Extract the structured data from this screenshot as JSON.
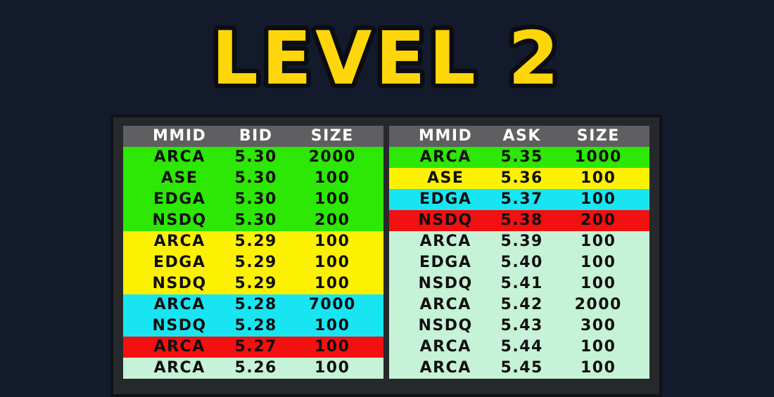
{
  "title": {
    "text": "LEVEL 2"
  },
  "colors": {
    "background": "#131a2b",
    "frame": "#26292c",
    "frame_edge": "#101218",
    "header_bg": "#5f5f61",
    "header_text": "#ffffff",
    "row_text": "#101010",
    "title_fill": "#ffd60a",
    "title_outline": "#0b0d12",
    "green": "#2ce804",
    "yellow": "#fdf103",
    "cyan": "#17e6f2",
    "red": "#f21010",
    "mint": "#c6f2d7"
  },
  "bid_panel": {
    "side": "bid",
    "headers": [
      "MMID",
      "BID",
      "SIZE"
    ],
    "rows": [
      {
        "mmid": "ARCA",
        "price": "5.30",
        "size": "2000",
        "color": "green"
      },
      {
        "mmid": "ASE",
        "price": "5.30",
        "size": "100",
        "color": "green"
      },
      {
        "mmid": "EDGA",
        "price": "5.30",
        "size": "100",
        "color": "green"
      },
      {
        "mmid": "NSDQ",
        "price": "5.30",
        "size": "200",
        "color": "green"
      },
      {
        "mmid": "ARCA",
        "price": "5.29",
        "size": "100",
        "color": "yellow"
      },
      {
        "mmid": "EDGA",
        "price": "5.29",
        "size": "100",
        "color": "yellow"
      },
      {
        "mmid": "NSDQ",
        "price": "5.29",
        "size": "100",
        "color": "yellow"
      },
      {
        "mmid": "ARCA",
        "price": "5.28",
        "size": "7000",
        "color": "cyan"
      },
      {
        "mmid": "NSDQ",
        "price": "5.28",
        "size": "100",
        "color": "cyan"
      },
      {
        "mmid": "ARCA",
        "price": "5.27",
        "size": "100",
        "color": "red"
      },
      {
        "mmid": "ARCA",
        "price": "5.26",
        "size": "100",
        "color": "mint"
      }
    ]
  },
  "ask_panel": {
    "side": "ask",
    "headers": [
      "MMID",
      "ASK",
      "SIZE"
    ],
    "rows": [
      {
        "mmid": "ARCA",
        "price": "5.35",
        "size": "1000",
        "color": "green"
      },
      {
        "mmid": "ASE",
        "price": "5.36",
        "size": "100",
        "color": "yellow"
      },
      {
        "mmid": "EDGA",
        "price": "5.37",
        "size": "100",
        "color": "cyan"
      },
      {
        "mmid": "NSDQ",
        "price": "5.38",
        "size": "200",
        "color": "red"
      },
      {
        "mmid": "ARCA",
        "price": "5.39",
        "size": "100",
        "color": "mint"
      },
      {
        "mmid": "EDGA",
        "price": "5.40",
        "size": "100",
        "color": "mint"
      },
      {
        "mmid": "NSDQ",
        "price": "5.41",
        "size": "100",
        "color": "mint"
      },
      {
        "mmid": "ARCA",
        "price": "5.42",
        "size": "2000",
        "color": "mint"
      },
      {
        "mmid": "NSDQ",
        "price": "5.43",
        "size": "300",
        "color": "mint"
      },
      {
        "mmid": "ARCA",
        "price": "5.44",
        "size": "100",
        "color": "mint"
      },
      {
        "mmid": "ARCA",
        "price": "5.45",
        "size": "100",
        "color": "mint"
      }
    ]
  }
}
